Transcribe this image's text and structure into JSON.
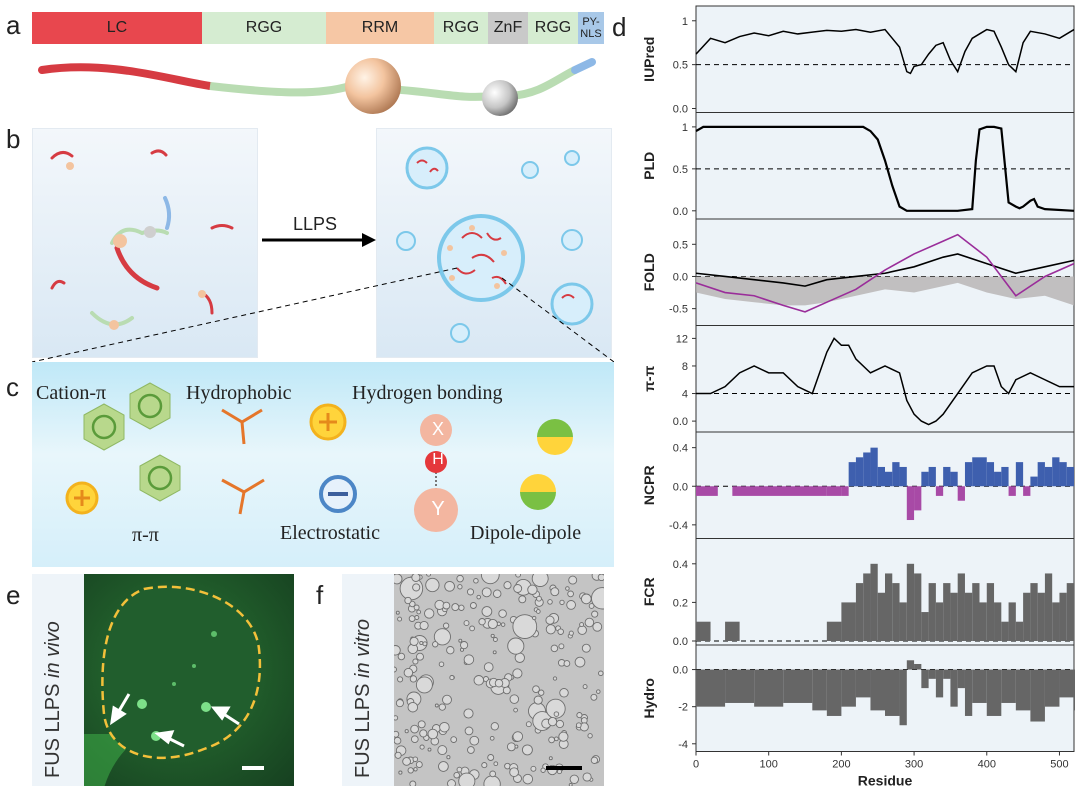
{
  "panels": {
    "a": "a",
    "b": "b",
    "c": "c",
    "d": "d",
    "e": "e",
    "f": "f"
  },
  "domains": [
    {
      "label": "LC",
      "color": "#e8474e"
    },
    {
      "label": "RGG",
      "color": "#d5ecd1"
    },
    {
      "label": "RRM",
      "color": "#f6c7a5"
    },
    {
      "label": "RGG",
      "color": "#d5ecd1"
    },
    {
      "label": "ZnF",
      "color": "#c9c9c9"
    },
    {
      "label": "RGG",
      "color": "#d5ecd1"
    },
    {
      "label": "PY-\nNLS",
      "color": "#a8c8e8"
    }
  ],
  "llps_arrow_label": "LLPS",
  "interactions": {
    "cation_pi": "Cation-π",
    "hydrophobic": "Hydrophobic",
    "hydrogen_bonding": "Hydrogen bonding",
    "pi_pi": "π-π",
    "electrostatic": "Electrostatic",
    "dipole": "Dipole-dipole",
    "hbond_x": "X",
    "hbond_h": "H",
    "hbond_y": "Y"
  },
  "panel_e_label": {
    "prefix": "FUS LLPS ",
    "italic": "in vivo"
  },
  "panel_f_label": {
    "prefix": "FUS LLPS ",
    "italic": "in vitro"
  },
  "colors": {
    "lc": "#e8474e",
    "rgg": "#d5ecd1",
    "rrm": "#f6c7a5",
    "znf": "#c9c9c9",
    "nls": "#a8c8e8",
    "ncpr_pos": "#3e5fae",
    "ncpr_neg": "#a84aa6",
    "fcr": "#666666",
    "hydro": "#666666",
    "fold_purple": "#9a2d9a"
  },
  "chart_data": [
    {
      "type": "line",
      "ylabel": "IUPred",
      "yticks": [
        0.0,
        0.5,
        1.0
      ],
      "ylim": [
        0,
        1.1
      ],
      "threshold": 0.5,
      "x": [
        0,
        20,
        40,
        60,
        80,
        100,
        120,
        140,
        160,
        180,
        200,
        220,
        240,
        260,
        270,
        280,
        290,
        295,
        300,
        310,
        320,
        330,
        340,
        350,
        360,
        370,
        380,
        390,
        400,
        410,
        420,
        430,
        440,
        450,
        460,
        480,
        500,
        520
      ],
      "y": [
        0.62,
        0.8,
        0.75,
        0.82,
        0.86,
        0.83,
        0.88,
        0.85,
        0.87,
        0.89,
        0.88,
        0.9,
        0.87,
        0.9,
        0.8,
        0.7,
        0.42,
        0.4,
        0.48,
        0.5,
        0.62,
        0.72,
        0.75,
        0.55,
        0.42,
        0.65,
        0.8,
        0.85,
        0.9,
        0.88,
        0.7,
        0.5,
        0.42,
        0.75,
        0.88,
        0.85,
        0.8,
        0.9
      ]
    },
    {
      "type": "line",
      "ylabel": "PLD",
      "yticks": [
        0.0,
        0.5,
        1.0
      ],
      "ylim": [
        -0.05,
        1.1
      ],
      "threshold": 0.5,
      "x": [
        0,
        10,
        230,
        240,
        250,
        260,
        270,
        280,
        290,
        340,
        360,
        380,
        385,
        390,
        400,
        410,
        420,
        430,
        440,
        445,
        450,
        460,
        465,
        470,
        480,
        520
      ],
      "y": [
        0.95,
        1.0,
        1.0,
        0.95,
        0.85,
        0.6,
        0.3,
        0.05,
        0.0,
        0.0,
        0.0,
        0.02,
        0.6,
        0.97,
        1.0,
        1.0,
        0.98,
        0.1,
        0.05,
        0.03,
        0.05,
        0.12,
        0.14,
        0.05,
        0.02,
        0.0
      ]
    },
    {
      "type": "line",
      "ylabel": "FOLD",
      "yticks": [
        -0.5,
        0.0,
        0.5
      ],
      "ylim": [
        -0.7,
        0.8
      ],
      "threshold": 0.0,
      "x": [
        0,
        40,
        80,
        120,
        150,
        180,
        220,
        260,
        300,
        340,
        360,
        400,
        440,
        480,
        520
      ],
      "series": [
        {
          "values": [
            0.05,
            0.0,
            -0.05,
            -0.1,
            -0.15,
            -0.05,
            0.0,
            0.05,
            0.15,
            0.3,
            0.35,
            0.2,
            0.05,
            0.15,
            0.25
          ]
        },
        {
          "values": [
            -0.1,
            -0.25,
            -0.3,
            -0.45,
            -0.55,
            -0.4,
            -0.2,
            0.1,
            0.35,
            0.55,
            0.65,
            0.3,
            -0.3,
            0.0,
            0.2
          ]
        },
        {
          "values": [
            -0.25,
            -0.35,
            -0.4,
            -0.45,
            -0.45,
            -0.4,
            -0.3,
            -0.2,
            -0.25,
            -0.15,
            -0.1,
            -0.25,
            -0.35,
            -0.3,
            -0.45
          ]
        }
      ]
    },
    {
      "type": "line",
      "ylabel": "π-π",
      "yticks": [
        0,
        4,
        8,
        12
      ],
      "ylim": [
        -1,
        13
      ],
      "threshold": 4,
      "x": [
        0,
        20,
        40,
        60,
        80,
        100,
        120,
        140,
        160,
        180,
        190,
        200,
        210,
        220,
        240,
        260,
        280,
        290,
        300,
        310,
        320,
        330,
        340,
        360,
        380,
        400,
        410,
        420,
        430,
        440,
        460,
        480,
        500,
        520
      ],
      "y": [
        4,
        4,
        5,
        7,
        8,
        7,
        7,
        5,
        4,
        10,
        12,
        11,
        11,
        9,
        7,
        8,
        7,
        3,
        1,
        0,
        -0.5,
        0,
        1,
        4,
        7,
        8,
        8,
        5,
        4,
        6,
        7,
        6,
        5,
        5
      ]
    },
    {
      "type": "bar",
      "ylabel": "NCPR",
      "yticks": [
        -0.4,
        0.0,
        0.4
      ],
      "ylim": [
        -0.5,
        0.5
      ],
      "x": [
        0,
        30,
        50,
        180,
        200,
        210,
        220,
        230,
        240,
        250,
        260,
        270,
        280,
        290,
        300,
        310,
        320,
        330,
        340,
        350,
        360,
        370,
        380,
        390,
        400,
        410,
        420,
        430,
        440,
        450,
        460,
        470,
        480,
        490,
        500,
        510
      ],
      "y": [
        -0.1,
        0.0,
        -0.1,
        -0.1,
        -0.1,
        0.25,
        0.3,
        0.35,
        0.4,
        0.2,
        0.15,
        0.25,
        0.2,
        -0.35,
        -0.25,
        0.15,
        0.2,
        -0.1,
        0.2,
        0.15,
        -0.15,
        0.25,
        0.3,
        0.3,
        0.25,
        0.15,
        0.2,
        -0.1,
        0.25,
        -0.1,
        0.1,
        0.25,
        0.2,
        0.3,
        0.25,
        0.2
      ]
    },
    {
      "type": "bar",
      "ylabel": "FCR",
      "yticks": [
        0.0,
        0.2,
        0.4
      ],
      "ylim": [
        0,
        0.5
      ],
      "x": [
        0,
        20,
        40,
        60,
        180,
        200,
        220,
        230,
        240,
        250,
        260,
        270,
        280,
        290,
        300,
        310,
        320,
        330,
        340,
        350,
        360,
        370,
        380,
        390,
        400,
        410,
        420,
        430,
        440,
        450,
        460,
        470,
        480,
        490,
        500,
        510
      ],
      "y": [
        0.1,
        0.0,
        0.1,
        0.0,
        0.1,
        0.2,
        0.3,
        0.35,
        0.4,
        0.25,
        0.35,
        0.3,
        0.2,
        0.4,
        0.35,
        0.15,
        0.3,
        0.2,
        0.3,
        0.25,
        0.35,
        0.25,
        0.3,
        0.2,
        0.3,
        0.2,
        0.1,
        0.2,
        0.1,
        0.25,
        0.3,
        0.25,
        0.35,
        0.2,
        0.25,
        0.3
      ]
    },
    {
      "type": "bar",
      "ylabel": "Hydro",
      "xlabel": "Residue",
      "yticks": [
        -4,
        -2,
        0
      ],
      "xticks": [
        0,
        100,
        200,
        300,
        400,
        500
      ],
      "ylim": [
        -4.2,
        1
      ],
      "xlim": [
        0,
        520
      ],
      "x": [
        0,
        40,
        80,
        120,
        160,
        180,
        200,
        220,
        240,
        260,
        280,
        290,
        300,
        310,
        320,
        330,
        340,
        350,
        360,
        370,
        380,
        400,
        420,
        440,
        460,
        480,
        500,
        520
      ],
      "y": [
        -2.0,
        -1.8,
        -2.0,
        -1.8,
        -2.2,
        -2.5,
        -2.0,
        -1.5,
        -2.2,
        -2.5,
        -3.0,
        0.5,
        0.3,
        -1.0,
        -0.5,
        -1.5,
        -0.5,
        -2.0,
        -1.0,
        -2.5,
        -1.8,
        -2.5,
        -1.8,
        -2.2,
        -2.8,
        -2.0,
        -1.5,
        -2.2
      ]
    }
  ]
}
